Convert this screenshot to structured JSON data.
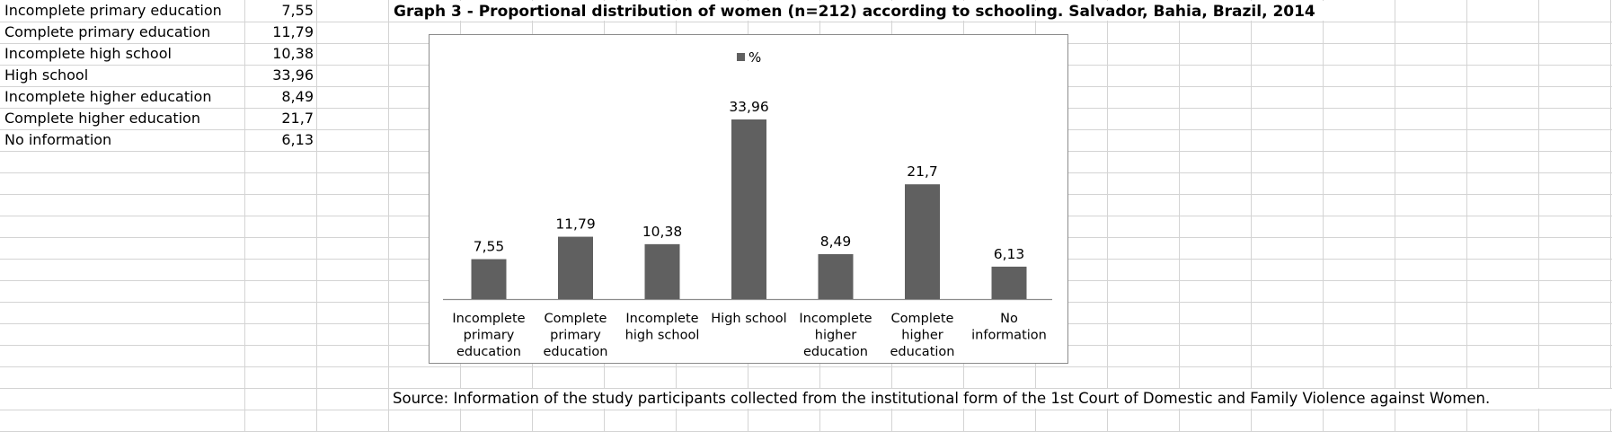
{
  "table": {
    "rows": [
      {
        "label": "Incomplete primary education",
        "value": "7,55"
      },
      {
        "label": "Complete primary education",
        "value": "11,79"
      },
      {
        "label": "Incomplete high school",
        "value": "10,38"
      },
      {
        "label": "High school",
        "value": "33,96"
      },
      {
        "label": "Incomplete higher education",
        "value": "8,49"
      },
      {
        "label": "Complete higher education",
        "value": "21,7"
      },
      {
        "label": "No information",
        "value": "6,13"
      }
    ]
  },
  "title": "Graph 3 - Proportional distribution of women (n=212) according to schooling. Salvador, Bahia, Brazil, 2014",
  "source": "Source: Information of the study participants collected from the institutional form of the 1st Court of Domestic and Family Violence against Women.",
  "chart_data": {
    "type": "bar",
    "categories": [
      [
        "Incomplete",
        "primary",
        "education"
      ],
      [
        "Complete",
        "primary",
        "education"
      ],
      [
        "Incomplete",
        "high school"
      ],
      [
        "High school"
      ],
      [
        "Incomplete",
        "higher",
        "education"
      ],
      [
        "Complete",
        "higher",
        "education"
      ],
      [
        "No",
        "information"
      ]
    ],
    "series": [
      {
        "name": "%",
        "values": [
          7.55,
          11.79,
          10.38,
          33.96,
          8.49,
          21.7,
          6.13
        ]
      }
    ],
    "data_labels": [
      "7,55",
      "11,79",
      "10,38",
      "33,96",
      "8,49",
      "21,7",
      "6,13"
    ],
    "legend": {
      "label": "%",
      "position": "top"
    },
    "ylim": [
      0,
      40
    ],
    "y_axis_visible": false,
    "grid": false,
    "bar_color": "#606060"
  }
}
